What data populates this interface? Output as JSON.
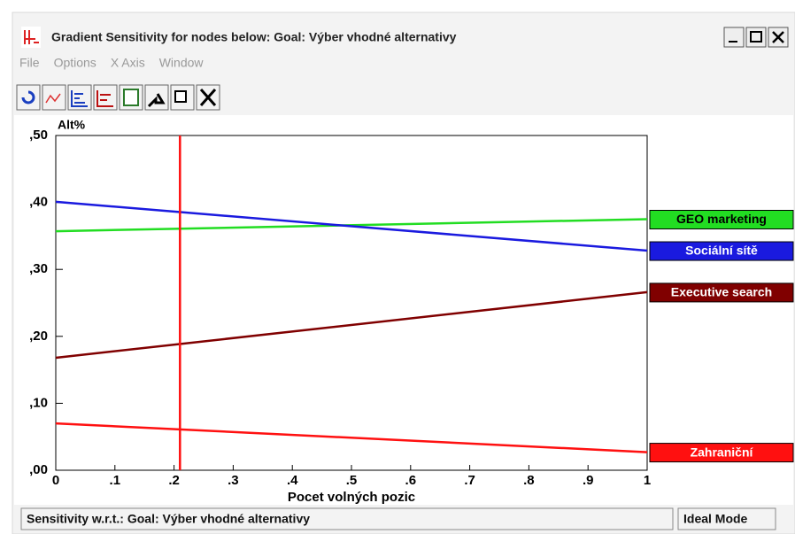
{
  "window": {
    "title": "Gradient Sensitivity for nodes below: Goal: Výber vhodné alternativy",
    "menu": [
      "File",
      "Options",
      "X Axis",
      "Window"
    ],
    "status": [
      "Sensitivity w.r.t.: Goal: Výber vhodné alternativy",
      "Ideal Mode"
    ]
  },
  "chart_data": {
    "type": "line",
    "y_label": "Alt%",
    "x_label": "Pocet volných pozic",
    "x": [
      0,
      1
    ],
    "series": [
      {
        "name": "GEO marketing",
        "color": "#22dd22",
        "values": [
          0.357,
          0.375
        ]
      },
      {
        "name": "Sociální sítě",
        "color": "#1a1adf",
        "values": [
          0.401,
          0.328
        ]
      },
      {
        "name": "Executive search",
        "color": "#800000",
        "values": [
          0.168,
          0.266
        ]
      },
      {
        "name": "Zahraniční",
        "color": "#ff1010",
        "values": [
          0.07,
          0.027
        ]
      }
    ],
    "marker_x": 0.21,
    "marker_color": "#ff1010",
    "xlim": [
      0,
      1
    ],
    "xticks": [
      0,
      {
        "value": 0.1,
        "label": ".1"
      },
      {
        "value": 0.2,
        "label": ".2"
      },
      {
        "value": 0.3,
        "label": ".3"
      },
      {
        "value": 0.4,
        "label": ".4"
      },
      {
        "value": 0.5,
        "label": ".5"
      },
      {
        "value": 0.6,
        "label": ".6"
      },
      {
        "value": 0.7,
        "label": ".7"
      },
      {
        "value": 0.8,
        "label": ".8"
      },
      {
        "value": 0.9,
        "label": ".9"
      },
      1
    ],
    "ylim": [
      0,
      0.5
    ],
    "yticks": [
      {
        "value": 0,
        "label": ",00"
      },
      {
        "value": 0.1,
        "label": ",10"
      },
      {
        "value": 0.2,
        "label": ",20"
      },
      {
        "value": 0.3,
        "label": ",30"
      },
      {
        "value": 0.4,
        "label": ",40"
      },
      {
        "value": 0.5,
        "label": ",50"
      }
    ]
  }
}
